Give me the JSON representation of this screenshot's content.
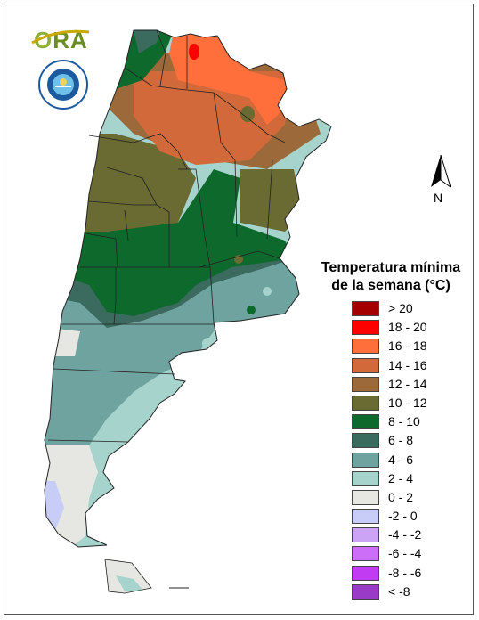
{
  "logo": {
    "text_o": "O",
    "text_rest": "RA"
  },
  "north_arrow": {
    "label": "N"
  },
  "legend": {
    "title_line1": "Temperatura mínima",
    "title_line2": "de la semana (°C)",
    "items": [
      {
        "label": "> 20",
        "color": "#a50000"
      },
      {
        "label": "18 - 20",
        "color": "#ff0000"
      },
      {
        "label": "16 - 18",
        "color": "#ff6f3c"
      },
      {
        "label": "14 - 16",
        "color": "#d2693a"
      },
      {
        "label": "12 - 14",
        "color": "#9c6a3a"
      },
      {
        "label": "10 - 12",
        "color": "#6a6a33"
      },
      {
        "label": "8 - 10",
        "color": "#0e6a2c"
      },
      {
        "label": "6 - 8",
        "color": "#3b6b5e"
      },
      {
        "label": "4 - 6",
        "color": "#6fa3a0"
      },
      {
        "label": "2 - 4",
        "color": "#a6d4cd"
      },
      {
        "label": "0 - 2",
        "color": "#e6e6e2"
      },
      {
        "label": "-2 - 0",
        "color": "#c8cdf7"
      },
      {
        "label": "-4 - -2",
        "color": "#cba4f5"
      },
      {
        "label": "-6 - -4",
        "color": "#cc6ef7"
      },
      {
        "label": "-8 - -6",
        "color": "#c13bf2"
      },
      {
        "label": "< -8",
        "color": "#9a3bc7"
      }
    ]
  }
}
